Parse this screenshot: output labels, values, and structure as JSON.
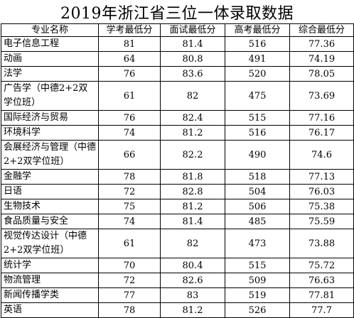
{
  "title": "2019年浙江省三位一体录取数据",
  "headers": [
    "专业名称",
    "学考最低分",
    "面试最低分",
    "高考最低分",
    "综合最低分"
  ],
  "rows": [
    {
      "name": "电子信息工程",
      "xk": "81",
      "ms": "81.4",
      "gk": "516",
      "zh": "77.36"
    },
    {
      "name": "动画",
      "xk": "64",
      "ms": "80.8",
      "gk": "491",
      "zh": "74.19"
    },
    {
      "name": "法学",
      "xk": "76",
      "ms": "83.6",
      "gk": "520",
      "zh": "78.05"
    },
    {
      "name": "广告学（中德2+2双学位班）",
      "xk": "61",
      "ms": "82",
      "gk": "475",
      "zh": "73.69"
    },
    {
      "name": "国际经济与贸易",
      "xk": "76",
      "ms": "82.4",
      "gk": "515",
      "zh": "77.16"
    },
    {
      "name": "环境科学",
      "xk": "74",
      "ms": "81.2",
      "gk": "516",
      "zh": "76.17"
    },
    {
      "name": "会展经济与管理（中德2+2双学位班）",
      "xk": "66",
      "ms": "82.2",
      "gk": "490",
      "zh": "74.6"
    },
    {
      "name": "金融学",
      "xk": "78",
      "ms": "81.8",
      "gk": "518",
      "zh": "77.13"
    },
    {
      "name": "日语",
      "xk": "72",
      "ms": "82.8",
      "gk": "504",
      "zh": "76.03"
    },
    {
      "name": "生物技术",
      "xk": "75",
      "ms": "81.2",
      "gk": "506",
      "zh": "75.38"
    },
    {
      "name": "食品质量与安全",
      "xk": "74",
      "ms": "81.4",
      "gk": "485",
      "zh": "75.59"
    },
    {
      "name": "视觉传达设计（中德2+2双学位班）",
      "xk": "61",
      "ms": "82",
      "gk": "473",
      "zh": "73.88"
    },
    {
      "name": "统计学",
      "xk": "70",
      "ms": "80.4",
      "gk": "515",
      "zh": "75.72"
    },
    {
      "name": "物流管理",
      "xk": "72",
      "ms": "82.6",
      "gk": "509",
      "zh": "76.63"
    },
    {
      "name": "新闻传播学类",
      "xk": "77",
      "ms": "83",
      "gk": "519",
      "zh": "77.81"
    },
    {
      "name": "英语",
      "xk": "78",
      "ms": "81.2",
      "gk": "526",
      "zh": "77.7"
    }
  ]
}
